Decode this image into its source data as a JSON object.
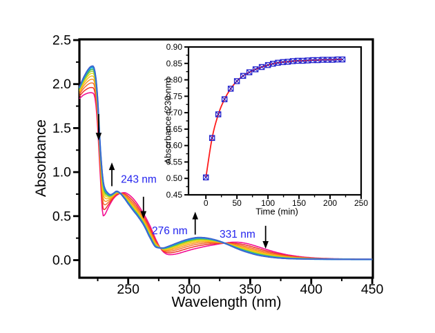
{
  "figure": {
    "background": "#ffffff",
    "frame_color": "#000000",
    "text_color": "#000000"
  },
  "main_chart": {
    "xlabel": "Wavelength (nm)",
    "ylabel": "Absorbance"
  },
  "inset_chart": {
    "xlabel": "Time (min)",
    "ylabel": "Absorbance (230 nm)"
  },
  "chart_data": [
    {
      "type": "line",
      "title": "",
      "xlabel": "Wavelength (nm)",
      "ylabel": "Absorbance",
      "x_range_nm": [
        210,
        450.5
      ],
      "y_range_abs": [
        -0.2,
        2.508
      ],
      "x_ticks_major": [
        250,
        300,
        350,
        400,
        450
      ],
      "x_ticks_minor": [
        225,
        275,
        325,
        375,
        425
      ],
      "y_ticks_major": [
        0.0,
        0.5,
        1.0,
        1.5,
        2.0,
        2.5
      ],
      "y_ticks_minor": [
        0.25,
        0.75,
        1.25,
        1.75,
        2.25
      ],
      "grid": false,
      "legend": "none",
      "description": "UV-Vis absorption spectra evolving in time; curves are linear combinations of initial and final spectra with crossings near 243, 276 and 331 nm",
      "control_wavelengths_nm": [
        210,
        213,
        216,
        219,
        221,
        223,
        225,
        227,
        229.5,
        231,
        233,
        235.5,
        238,
        240.5,
        243.5,
        247,
        250,
        254,
        258,
        263,
        268,
        273,
        278,
        284,
        290,
        296,
        302,
        308,
        314,
        320,
        326,
        331,
        336,
        342,
        348,
        355,
        362,
        370,
        380,
        390,
        400,
        412,
        425,
        438,
        450
      ],
      "spectrum_initial_abs": [
        1.835,
        1.872,
        1.893,
        1.902,
        1.898,
        1.82,
        1.5,
        0.98,
        0.503,
        0.52,
        0.578,
        0.645,
        0.7,
        0.735,
        0.758,
        0.767,
        0.748,
        0.7,
        0.628,
        0.518,
        0.385,
        0.225,
        0.105,
        0.062,
        0.072,
        0.096,
        0.12,
        0.14,
        0.158,
        0.173,
        0.187,
        0.197,
        0.204,
        0.201,
        0.186,
        0.158,
        0.127,
        0.094,
        0.062,
        0.041,
        0.028,
        0.019,
        0.014,
        0.012,
        0.011
      ],
      "spectrum_final_abs": [
        1.965,
        2.063,
        2.142,
        2.196,
        2.205,
        2.12,
        1.82,
        1.3,
        0.895,
        0.812,
        0.768,
        0.744,
        0.76,
        0.783,
        0.758,
        0.7,
        0.64,
        0.565,
        0.495,
        0.39,
        0.25,
        0.145,
        0.138,
        0.163,
        0.195,
        0.225,
        0.247,
        0.258,
        0.252,
        0.235,
        0.209,
        0.181,
        0.15,
        0.115,
        0.087,
        0.06,
        0.042,
        0.028,
        0.018,
        0.014,
        0.012,
        0.01,
        0.009,
        0.009,
        0.009
      ],
      "series": [
        {
          "fraction": 0.0,
          "color": "#F30D92",
          "width": 1.6
        },
        {
          "fraction": 0.2,
          "color": "#EF3328",
          "width": 1.5
        },
        {
          "fraction": 0.37,
          "color": "#F4672B",
          "width": 1.4
        },
        {
          "fraction": 0.51,
          "color": "#F8941E",
          "width": 1.4
        },
        {
          "fraction": 0.63,
          "color": "#FCB813",
          "width": 1.4
        },
        {
          "fraction": 0.73,
          "color": "#E2DA15",
          "width": 1.4
        },
        {
          "fraction": 0.81,
          "color": "#9FCB33",
          "width": 1.5
        },
        {
          "fraction": 0.88,
          "color": "#3FB549",
          "width": 1.6
        },
        {
          "fraction": 0.95,
          "color": "#17ABDF",
          "width": 2.4
        },
        {
          "fraction": 1.0,
          "color": "#3F63CE",
          "width": 1.9
        }
      ],
      "annotations": {
        "label_color": "#2222EE",
        "arrow_color": "#000000",
        "labels": [
          {
            "text": "243 nm",
            "lambda_nm": 244.0,
            "abs": 0.88
          },
          {
            "text": "276 nm",
            "lambda_nm": 269.4,
            "abs": 0.294
          },
          {
            "text": "331 nm",
            "lambda_nm": 324.9,
            "abs": 0.255
          }
        ],
        "arrows": [
          {
            "lambda_nm": 225.8,
            "abs_from": 1.66,
            "abs_to": 1.36
          },
          {
            "lambda_nm": 236.6,
            "abs_from": 0.84,
            "abs_to": 1.11
          },
          {
            "lambda_nm": 262.5,
            "abs_from": 0.72,
            "abs_to": 0.47
          },
          {
            "lambda_nm": 304.9,
            "abs_from": 0.29,
            "abs_to": 0.55
          },
          {
            "lambda_nm": 362.6,
            "abs_from": 0.39,
            "abs_to": 0.13
          }
        ]
      }
    },
    {
      "type": "scatter",
      "title": "",
      "xlabel": "Time (min)",
      "ylabel": "Absorbance (230 nm)",
      "x_range": [
        -28,
        250
      ],
      "y_range": [
        0.45,
        0.9
      ],
      "x_ticks_major": [
        0,
        50,
        100,
        150,
        200,
        250
      ],
      "x_ticks_minor": [
        25,
        75,
        125,
        175,
        225
      ],
      "y_ticks_major": [
        0.45,
        0.5,
        0.55,
        0.6,
        0.65,
        0.7,
        0.75,
        0.8,
        0.85,
        0.9
      ],
      "y_ticks_minor": [
        0.475,
        0.525,
        0.575,
        0.625,
        0.675,
        0.725,
        0.775,
        0.825,
        0.875
      ],
      "grid": false,
      "legend": "none",
      "marker": "open-square-with-x",
      "marker_color": "#2222CC",
      "fit_line_color": "#FE1A1A",
      "x": [
        0,
        10,
        20,
        30,
        40,
        50,
        60,
        70,
        80,
        90,
        100,
        108,
        116,
        124,
        132,
        140,
        148,
        156,
        164,
        172,
        180,
        188,
        196,
        204,
        212,
        220
      ],
      "y": [
        0.503,
        0.623,
        0.695,
        0.741,
        0.773,
        0.796,
        0.812,
        0.823,
        0.832,
        0.839,
        0.845,
        0.849,
        0.852,
        0.854,
        0.855,
        0.857,
        0.858,
        0.858,
        0.859,
        0.86,
        0.86,
        0.861,
        0.861,
        0.861,
        0.862,
        0.862
      ]
    }
  ]
}
